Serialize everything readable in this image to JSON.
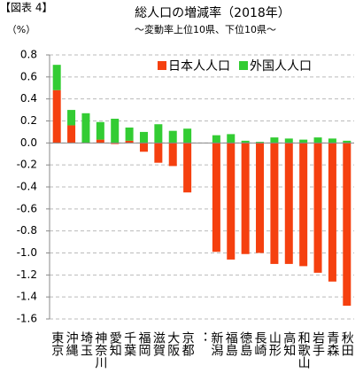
{
  "chart_data": {
    "type": "bar",
    "stacked": true,
    "figure_label": "【図表 4】",
    "title": "総人口の増減率（2018年）",
    "subtitle": "～変動率上位10県、下位10県～",
    "y_label": "（%）",
    "categories": [
      "東京",
      "沖縄",
      "埼玉",
      "神奈川",
      "愛知",
      "千葉",
      "福岡",
      "滋賀",
      "大阪",
      "京都",
      "：",
      "新潟",
      "福島",
      "徳島",
      "長崎",
      "山形",
      "高知",
      "和歌山",
      "岩手",
      "青森",
      "秋田"
    ],
    "series": [
      {
        "name": "日本人人口",
        "color": "#f5400f",
        "values": [
          0.48,
          0.16,
          0,
          0.03,
          -0.01,
          0.02,
          -0.08,
          -0.18,
          -0.21,
          -0.45,
          null,
          -0.99,
          -1.06,
          -1.01,
          -1.0,
          -1.1,
          -1.1,
          -1.12,
          -1.18,
          -1.26,
          -1.48
        ]
      },
      {
        "name": "外国人人口",
        "color": "#33cc33",
        "values": [
          0.23,
          0.14,
          0.27,
          0.16,
          0.22,
          0.12,
          0.1,
          0.17,
          0.11,
          0.13,
          null,
          0.07,
          0.08,
          0.02,
          0.01,
          0.05,
          0.04,
          0.03,
          0.05,
          0.04,
          0.02
        ]
      }
    ],
    "ylim": [
      -1.6,
      0.8
    ],
    "yticks": [
      0.8,
      0.6,
      0.4,
      0.2,
      {
        "value": 0,
        "label": "0.0"
      },
      -0.2,
      -0.4,
      -0.6,
      -0.8,
      {
        "value": -1,
        "label": "-1.0"
      },
      -1.2,
      -1.4,
      -1.6
    ],
    "grid": true,
    "legend": "upper right"
  }
}
